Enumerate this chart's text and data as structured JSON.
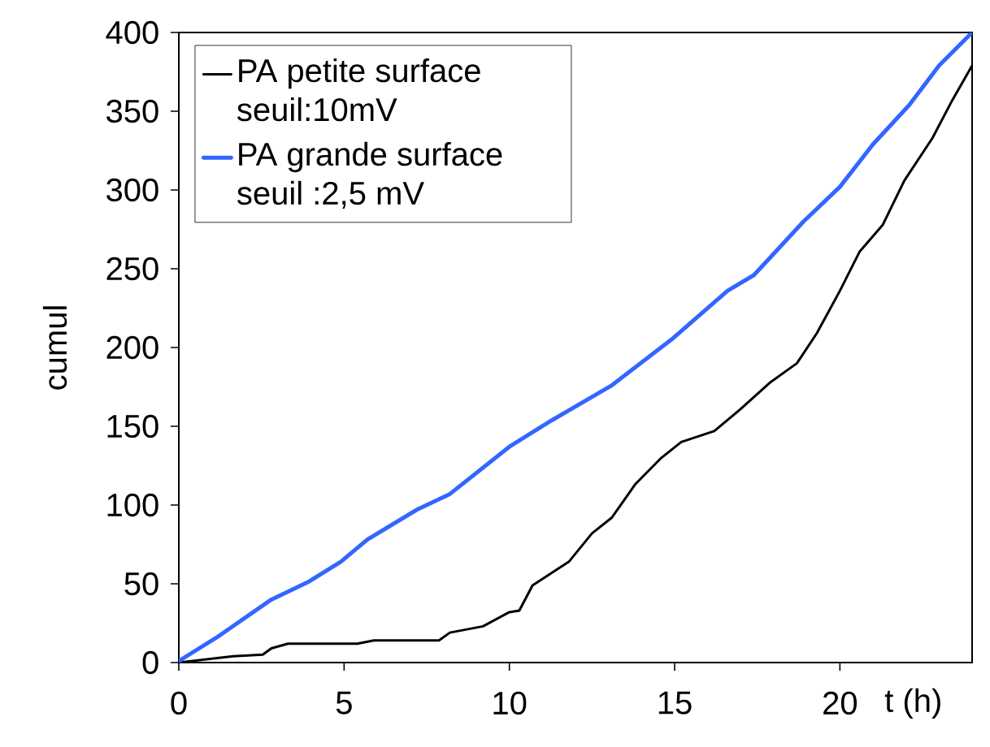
{
  "chart_data": {
    "type": "line",
    "xlabel": "t (h)",
    "ylabel": "cumul",
    "xlim": [
      0,
      24
    ],
    "xticks": [
      0,
      5,
      10,
      15,
      20
    ],
    "ylim": [
      0,
      400
    ],
    "yticks": [
      0,
      50,
      100,
      150,
      200,
      250,
      300,
      350,
      400
    ],
    "legend": "top left",
    "grid": false,
    "marker": "none",
    "line_style": "solid",
    "series": [
      {
        "name": "PA petite surface seuil:10mV",
        "color": "#000000",
        "x": [
          0,
          1.64,
          2.54,
          2.8,
          3.3,
          5.4,
          5.9,
          7.87,
          8.2,
          9.2,
          10.0,
          10.3,
          10.7,
          11.8,
          12.5,
          13.1,
          13.8,
          14.6,
          15.2,
          16.2,
          17.0,
          17.9,
          18.7,
          19.3,
          20.0,
          20.6,
          21.3,
          21.95,
          22.8,
          23.4,
          24.0
        ],
        "values": [
          0,
          4,
          5,
          9,
          12,
          12,
          14,
          14,
          19,
          23,
          32,
          33,
          49,
          64,
          82,
          92,
          113,
          130,
          140,
          147,
          161,
          178,
          190,
          209,
          236,
          261,
          278,
          306,
          333,
          357,
          379
        ]
      },
      {
        "name": "PA grande surface seuil :2,5 mV",
        "color": "#3366ff",
        "x": [
          0,
          1.15,
          2.8,
          3.9,
          4.9,
          5.7,
          7.2,
          8.2,
          10.0,
          11.3,
          13.1,
          14.9,
          16.6,
          17.4,
          18.9,
          20.0,
          21.0,
          22.1,
          23.0,
          24
        ],
        "values": [
          1,
          16,
          40,
          51,
          64,
          78,
          97,
          107,
          137,
          154,
          176,
          205,
          236,
          246,
          280,
          302,
          329,
          354,
          379,
          400
        ]
      }
    ]
  }
}
